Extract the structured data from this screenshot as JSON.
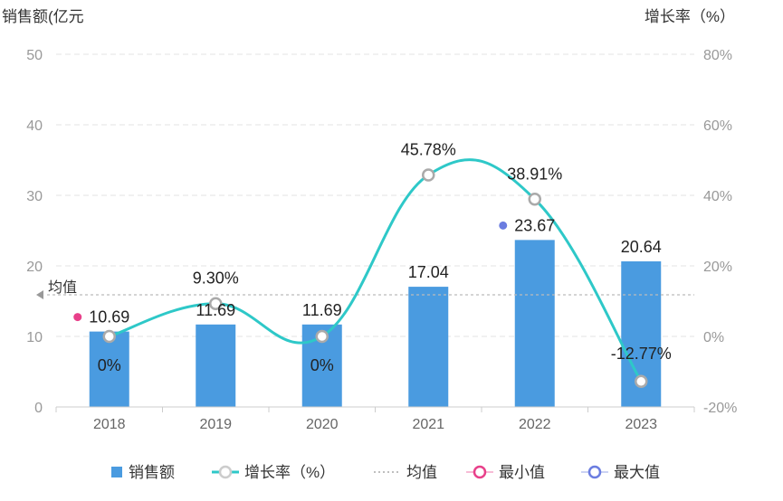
{
  "chart_data": {
    "type": "bar+line",
    "categories": [
      "2018",
      "2019",
      "2020",
      "2021",
      "2022",
      "2023"
    ],
    "y_left": {
      "label": "销售额(亿元",
      "min": 0,
      "max": 50,
      "ticks": [
        "0",
        "10",
        "20",
        "30",
        "40",
        "50"
      ]
    },
    "y_right": {
      "label": "增长率（%）",
      "min": -20,
      "max": 80,
      "ticks": [
        "-20%",
        "0%",
        "20%",
        "40%",
        "60%",
        "80%"
      ]
    },
    "series": [
      {
        "name": "销售额",
        "type": "bar",
        "axis": "left",
        "color": "#4a9be0",
        "values": [
          10.69,
          11.69,
          11.69,
          17.04,
          23.67,
          20.64
        ],
        "labels": [
          "10.69",
          "11.69",
          "11.69",
          "17.04",
          "23.67",
          "20.64"
        ]
      },
      {
        "name": "增长率（%）",
        "type": "line",
        "axis": "right",
        "color": "#2ec8c8",
        "values": [
          0,
          9.3,
          0,
          45.78,
          38.91,
          -12.77
        ],
        "labels": [
          "0%",
          "9.30%",
          "0%",
          "45.78%",
          "38.91%",
          "-12.77%"
        ]
      }
    ],
    "average": {
      "label": "均值",
      "value": 15.9
    },
    "min_marker": {
      "category": "2018",
      "color": "#e8408a"
    },
    "max_marker": {
      "category": "2022",
      "color": "#6b7de0"
    },
    "legend": {
      "position": "bottom",
      "items": [
        {
          "label": "销售额",
          "type": "bar",
          "color": "#4a9be0"
        },
        {
          "label": "增长率（%）",
          "type": "line",
          "color": "#2ec8c8"
        },
        {
          "label": "均值",
          "type": "dotted",
          "color": "#aaaaaa"
        },
        {
          "label": "最小值",
          "type": "ring",
          "color": "#e8408a"
        },
        {
          "label": "最大值",
          "type": "ring",
          "color": "#6b7de0"
        }
      ]
    },
    "grid": true
  }
}
